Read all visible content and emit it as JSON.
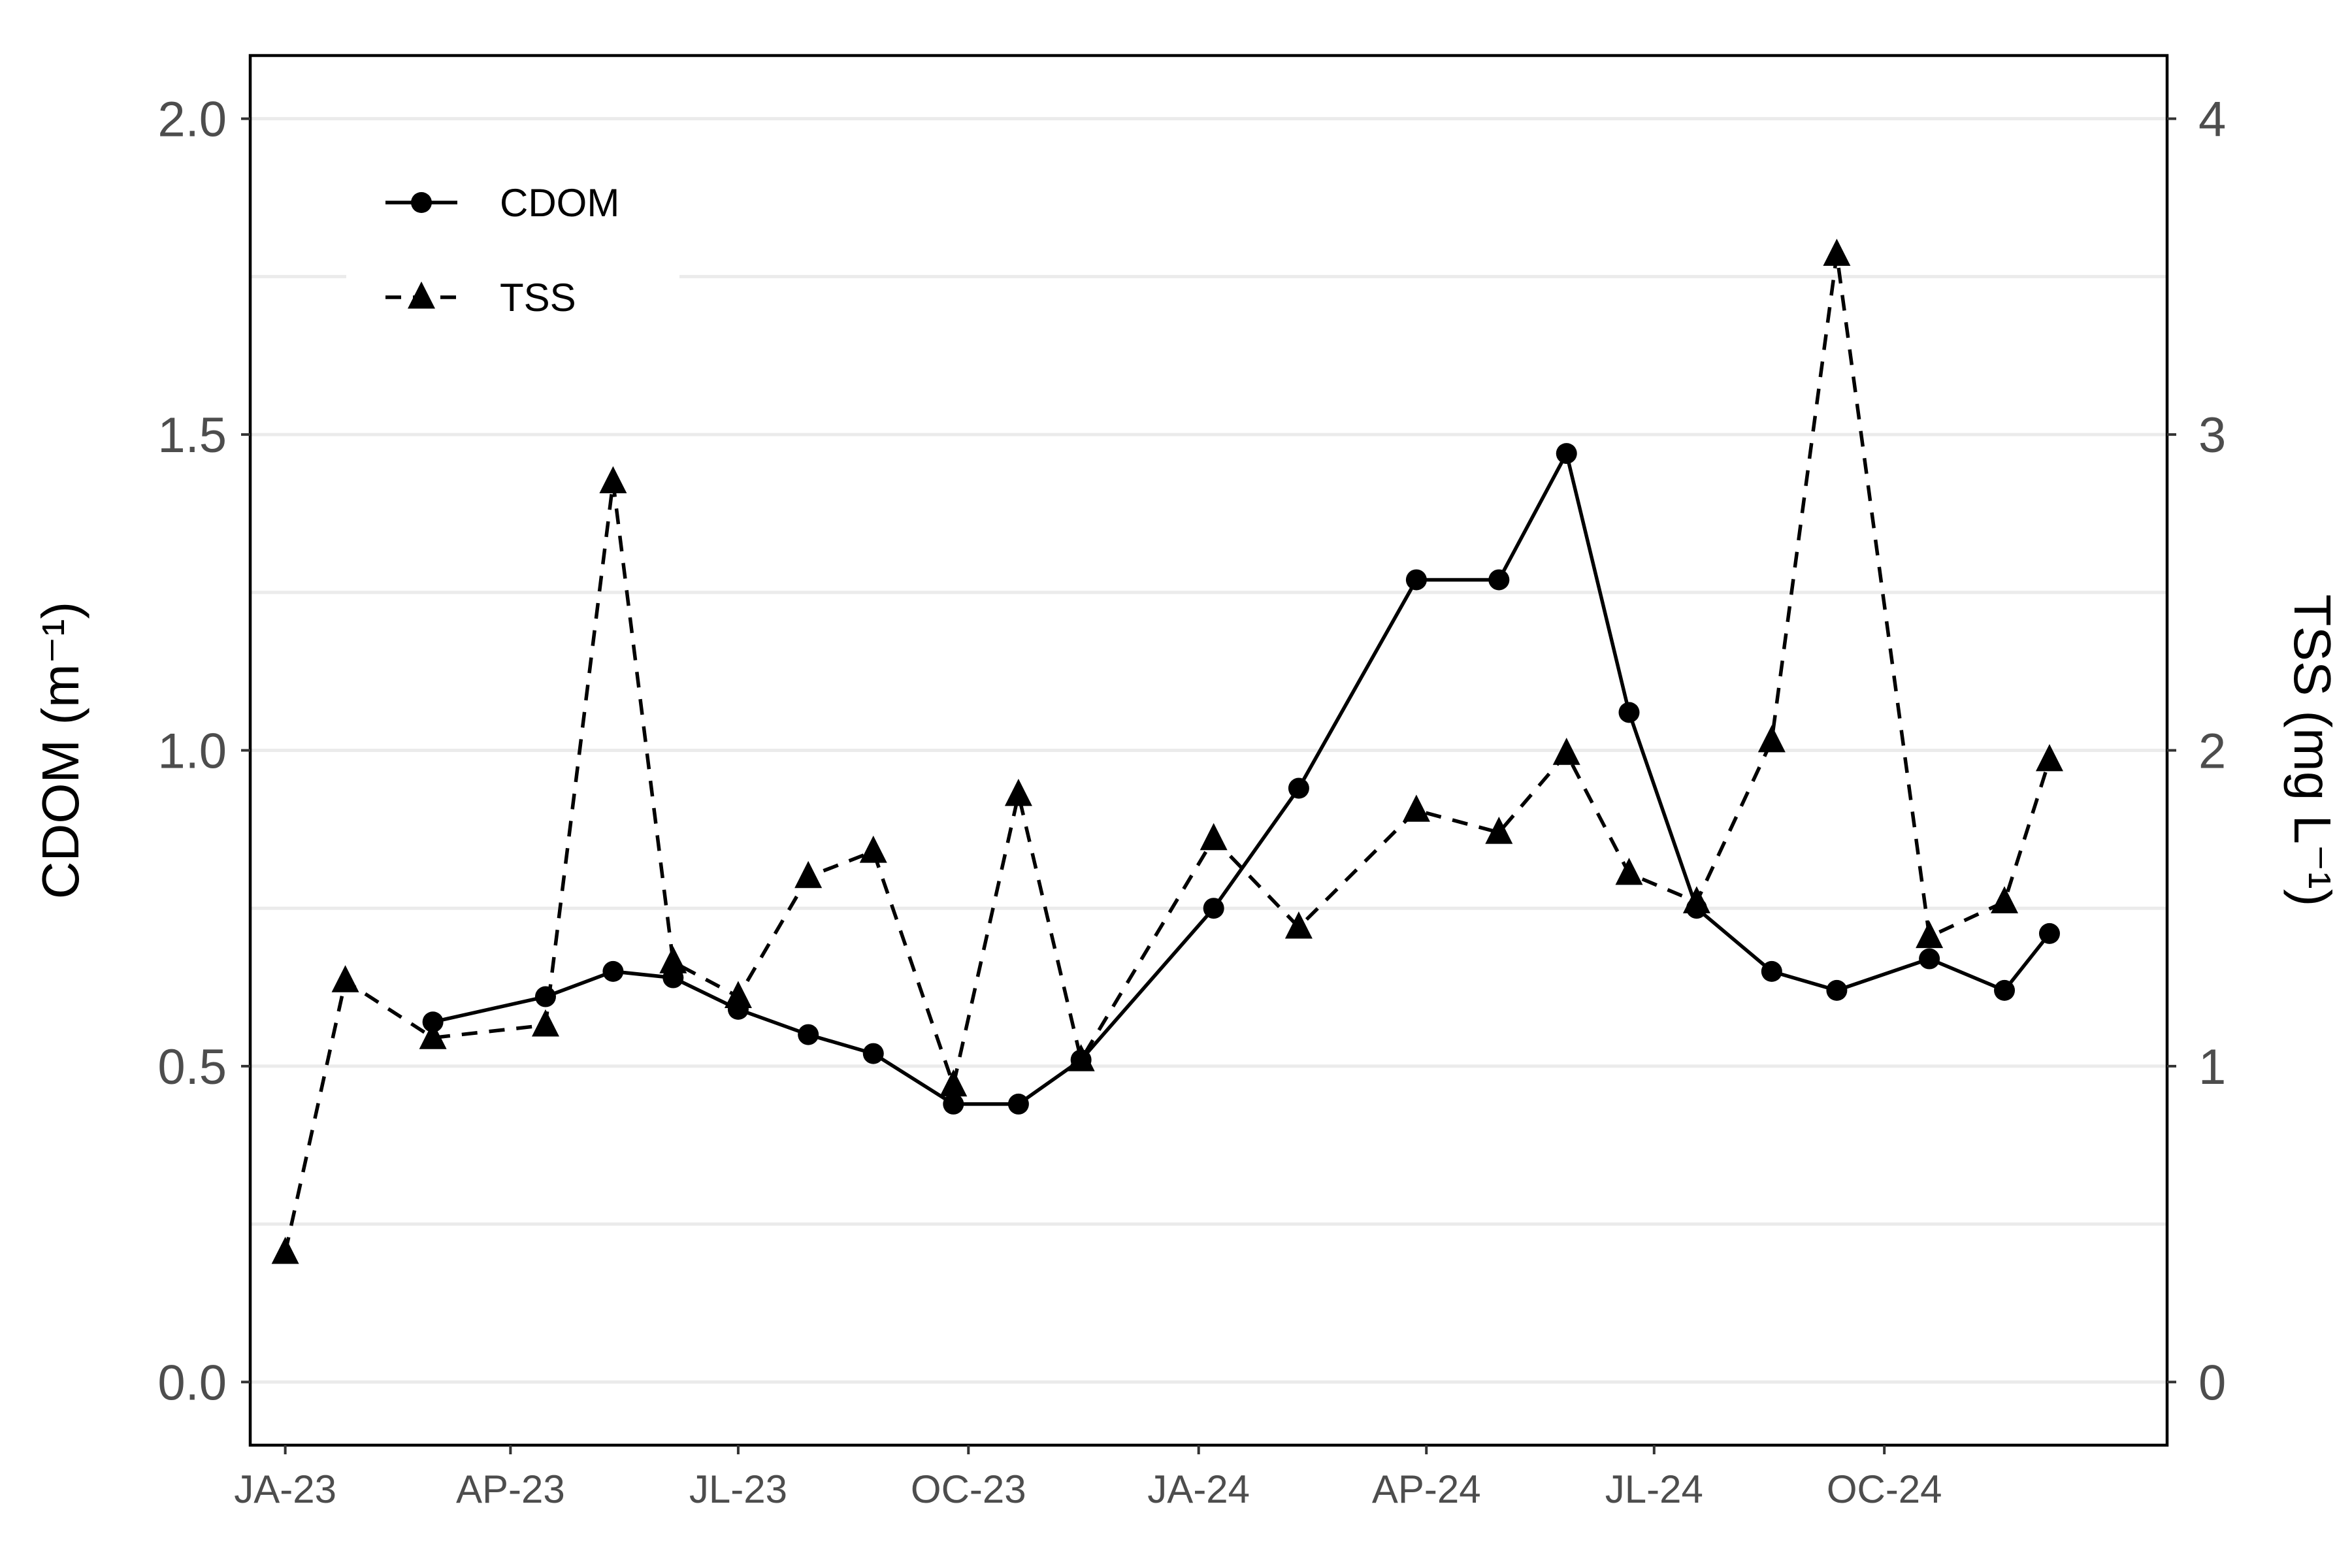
{
  "chart_data": {
    "type": "line",
    "title": "",
    "xlabel": "",
    "ylabel": "CDOM (m⁻¹)",
    "y2label": "TSS (mg L⁻¹)",
    "ylim": [
      -0.1,
      2.1
    ],
    "y2lim": [
      -0.2,
      4.2
    ],
    "yticks": [
      0.0,
      0.5,
      1.0,
      1.5,
      2.0
    ],
    "ytick_labels": [
      "0.0",
      "0.5",
      "1.0",
      "1.5",
      "2.0"
    ],
    "y2ticks": [
      0,
      1,
      2,
      3,
      4
    ],
    "y2tick_labels": [
      "0",
      "1",
      "2",
      "3",
      "4"
    ],
    "xlim": [
      "2022-12-18",
      "2025-01-22"
    ],
    "xticks": [
      "2023-01-01",
      "2023-04-01",
      "2023-07-01",
      "2023-10-01",
      "2024-01-01",
      "2024-04-01",
      "2024-07-01",
      "2024-10-01"
    ],
    "xtick_labels": [
      "JA-23",
      "AP-23",
      "JL-23",
      "OC-23",
      "JA-24",
      "AP-24",
      "JL-24",
      "OC-24"
    ],
    "grid": "horizontal",
    "legend_position": "top-left",
    "series": [
      {
        "name": "CDOM",
        "axis": "left",
        "marker": "circle",
        "linestyle": "solid",
        "color": "#000000",
        "x": [
          "2023-03-01",
          "2023-04-15",
          "2023-05-12",
          "2023-06-05",
          "2023-07-01",
          "2023-07-29",
          "2023-08-24",
          "2023-09-25",
          "2023-10-21",
          "2023-11-15",
          "2024-01-07",
          "2024-02-10",
          "2024-03-28",
          "2024-04-30",
          "2024-05-27",
          "2024-06-21",
          "2024-07-18",
          "2024-08-17",
          "2024-09-12",
          "2024-10-19",
          "2024-11-18",
          "2024-12-06"
        ],
        "values": [
          0.57,
          0.61,
          0.65,
          0.64,
          0.59,
          0.55,
          0.52,
          0.44,
          0.44,
          0.51,
          0.75,
          0.94,
          1.27,
          1.27,
          1.47,
          1.06,
          0.75,
          0.65,
          0.62,
          0.67,
          0.62,
          0.71
        ]
      },
      {
        "name": "TSS",
        "axis": "right",
        "marker": "triangle",
        "linestyle": "dashed",
        "color": "#000000",
        "x": [
          "2023-01-01",
          "2023-01-25",
          "2023-03-01",
          "2023-04-15",
          "2023-05-12",
          "2023-06-05",
          "2023-07-01",
          "2023-07-29",
          "2023-08-24",
          "2023-09-25",
          "2023-10-21",
          "2023-11-15",
          "2024-01-07",
          "2024-02-10",
          "2024-03-28",
          "2024-04-30",
          "2024-05-27",
          "2024-06-21",
          "2024-07-18",
          "2024-08-17",
          "2024-09-12",
          "2024-10-19",
          "2024-11-18",
          "2024-12-06"
        ],
        "values": [
          0.41,
          1.27,
          1.09,
          1.13,
          2.85,
          1.33,
          1.22,
          1.6,
          1.68,
          0.94,
          1.86,
          1.02,
          1.72,
          1.44,
          1.81,
          1.74,
          1.99,
          1.61,
          1.52,
          2.03,
          3.57,
          1.41,
          1.52,
          1.97
        ]
      }
    ]
  }
}
